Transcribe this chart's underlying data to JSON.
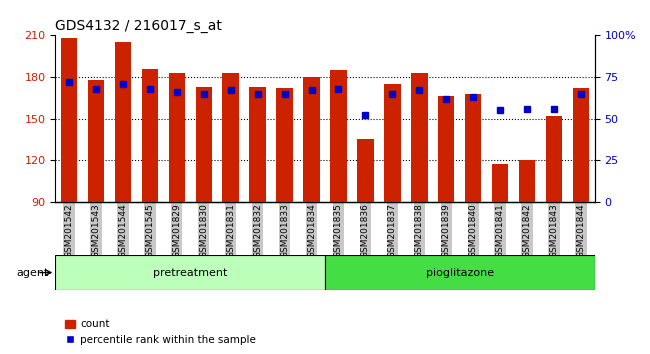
{
  "title": "GDS4132 / 216017_s_at",
  "samples": [
    "GSM201542",
    "GSM201543",
    "GSM201544",
    "GSM201545",
    "GSM201829",
    "GSM201830",
    "GSM201831",
    "GSM201832",
    "GSM201833",
    "GSM201834",
    "GSM201835",
    "GSM201836",
    "GSM201837",
    "GSM201838",
    "GSM201839",
    "GSM201840",
    "GSM201841",
    "GSM201842",
    "GSM201843",
    "GSM201844"
  ],
  "count_values": [
    208,
    178,
    205,
    186,
    183,
    173,
    183,
    173,
    172,
    180,
    185,
    135,
    175,
    183,
    166,
    168,
    117,
    120,
    152,
    172
  ],
  "percentile_values": [
    72,
    68,
    71,
    68,
    66,
    65,
    67,
    65,
    65,
    67,
    68,
    52,
    65,
    67,
    62,
    63,
    55,
    56,
    56,
    65
  ],
  "pretreatment_count": 10,
  "pioglitazone_count": 10,
  "group1_label": "pretreatment",
  "group2_label": "pioglitazone",
  "agent_label": "agent",
  "ylim_left": [
    90,
    210
  ],
  "ylim_right": [
    0,
    100
  ],
  "yticks_left": [
    90,
    120,
    150,
    180,
    210
  ],
  "yticks_right": [
    0,
    25,
    50,
    75,
    100
  ],
  "ytick_labels_right": [
    "0",
    "25",
    "50",
    "75",
    "100%"
  ],
  "bar_color": "#cc2200",
  "percentile_color": "#0000cc",
  "group1_bg": "#bbffbb",
  "group2_bg": "#44dd44",
  "xticklabels_bg": "#c8c8c8",
  "legend_count_label": "count",
  "legend_percentile_label": "percentile rank within the sample",
  "title_fontsize": 10,
  "bar_width": 0.6,
  "percentile_marker_size": 5
}
